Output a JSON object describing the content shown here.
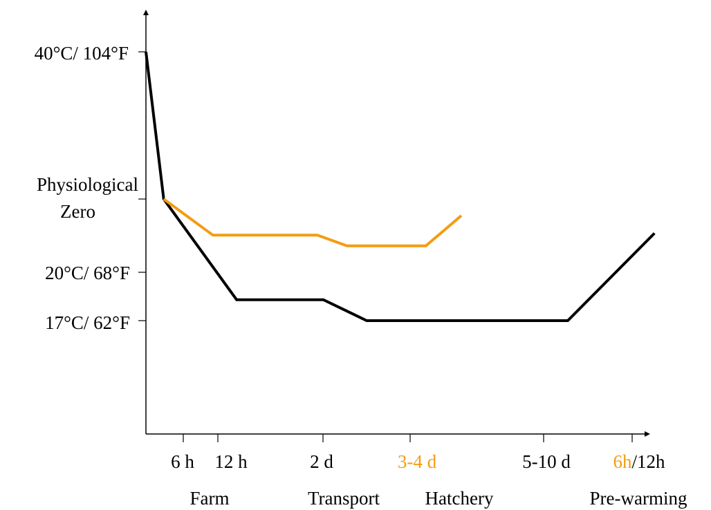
{
  "chart_data": {
    "type": "line",
    "title": "",
    "xlabel": "",
    "ylabel": "",
    "y_tick_labels": [
      [
        "40°C/ 104°F"
      ],
      [
        "Physiological",
        "Zero"
      ],
      [
        "20°C/ 68°F"
      ],
      [
        "17°C/ 62°F"
      ]
    ],
    "x_tick_labels": [
      {
        "parts": [
          {
            "text": "6 h",
            "color": "#000000"
          }
        ]
      },
      {
        "parts": [
          {
            "text": "12 h",
            "color": "#000000"
          }
        ]
      },
      {
        "parts": [
          {
            "text": "2 d",
            "color": "#000000"
          }
        ]
      },
      {
        "parts": [
          {
            "text": "3-4 d",
            "color": "#F39C12"
          }
        ]
      },
      {
        "parts": [
          {
            "text": "5-10 d",
            "color": "#000000"
          }
        ]
      },
      {
        "parts": [
          {
            "text": "6h",
            "color": "#F39C12"
          },
          {
            "text": "/12h",
            "color": "#000000"
          }
        ]
      }
    ],
    "stage_labels": [
      "Farm",
      "Transport",
      "Hatchery",
      "Pre-warming"
    ],
    "series": [
      {
        "color": "#000000",
        "points": [
          [
            0,
            40
          ],
          [
            0.45,
            27.5
          ],
          [
            2.3,
            18.3
          ],
          [
            4.5,
            18.3
          ],
          [
            5.6,
            17
          ],
          [
            10.7,
            17
          ],
          [
            12.9,
            24
          ]
        ]
      },
      {
        "color": "#F39C12",
        "points": [
          [
            0.45,
            27.5
          ],
          [
            1.7,
            23.8
          ],
          [
            4.35,
            23.8
          ],
          [
            5.1,
            22.7
          ],
          [
            7.1,
            22.7
          ],
          [
            8.0,
            25.8
          ]
        ]
      }
    ],
    "grid": false,
    "legend": "none"
  }
}
